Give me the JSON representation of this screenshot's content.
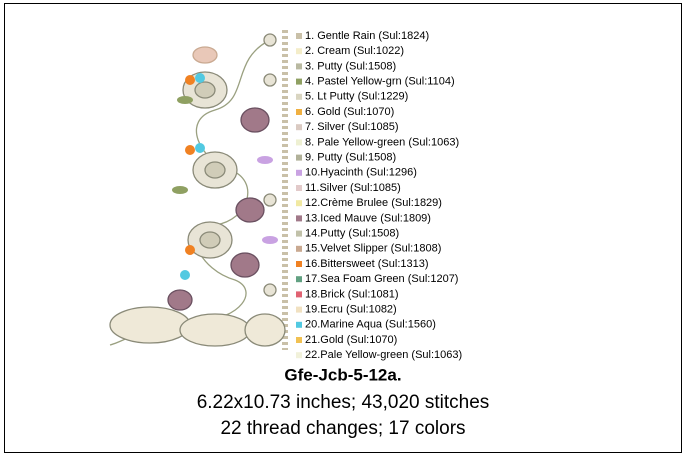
{
  "design": {
    "threads": [
      {
        "label": "1.  Gentle Rain (Sul:1824)",
        "color": "#c9c0a8"
      },
      {
        "label": "2.  Cream (Sul:1022)",
        "color": "#f4edc9"
      },
      {
        "label": "3.  Putty (Sul:1508)",
        "color": "#b9b9a1"
      },
      {
        "label": "4.  Pastel Yellow-grn (Sul:1104)",
        "color": "#8fa062"
      },
      {
        "label": "5.  Lt Putty (Sul:1229)",
        "color": "#d9d5c1"
      },
      {
        "label": "6.  Gold (Sul:1070)",
        "color": "#f0b041"
      },
      {
        "label": "7.  Silver (Sul:1085)",
        "color": "#dacac2"
      },
      {
        "label": "8.  Pale Yellow-green (Sul:1063)",
        "color": "#eef0d2"
      },
      {
        "label": "9.  Putty (Sul:1508)",
        "color": "#b1b199"
      },
      {
        "label": "10.Hyacinth (Sul:1296)",
        "color": "#c9a2e2"
      },
      {
        "label": "11.Silver (Sul:1085)",
        "color": "#e2caca"
      },
      {
        "label": "12.Crème Brulee (Sul:1829)",
        "color": "#f1e9a2"
      },
      {
        "label": "13.Iced Mauve (Sul:1809)",
        "color": "#a17989"
      },
      {
        "label": "14.Putty (Sul:1508)",
        "color": "#c1c1a9"
      },
      {
        "label": "15.Velvet Slipper (Sul:1808)",
        "color": "#c9a991"
      },
      {
        "label": "16.Bittersweet (Sul:1313)",
        "color": "#f08122"
      },
      {
        "label": "17.Sea Foam Green (Sul:1207)",
        "color": "#62a182"
      },
      {
        "label": "18.Brick (Sul:1081)",
        "color": "#e06272"
      },
      {
        "label": "19.Ecru (Sul:1082)",
        "color": "#f1e1c1"
      },
      {
        "label": "20.Marine Aqua (Sul:1560)",
        "color": "#52c9e1"
      },
      {
        "label": "21.Gold (Sul:1070)",
        "color": "#f1c152"
      },
      {
        "label": "22.Pale Yellow-green (Sul:1063)",
        "color": "#f1f1da"
      }
    ],
    "name": "Gfe-Jcb-5-12a.",
    "size_line": "6.22x10.73 inches; 43,020 stitches",
    "count_line": "22 thread changes; 17 colors"
  }
}
